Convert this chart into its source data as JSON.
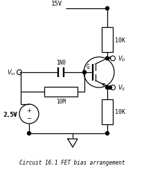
{
  "title": "Circuit 16.1 FET bias arrangement",
  "bg_color": "#ffffff",
  "line_color": "#000000",
  "figsize": [
    2.08,
    2.53
  ],
  "dpi": 100,
  "vdd": "15V",
  "rd_label": "10K",
  "rs_label": "10K",
  "rg_label": "10M",
  "cap_label": "1N0",
  "vbias": "2.5V",
  "vd_label": "$V_D$",
  "vs_label": "$V_S$",
  "vin_label": "$V_{in}$",
  "G_label": "G"
}
